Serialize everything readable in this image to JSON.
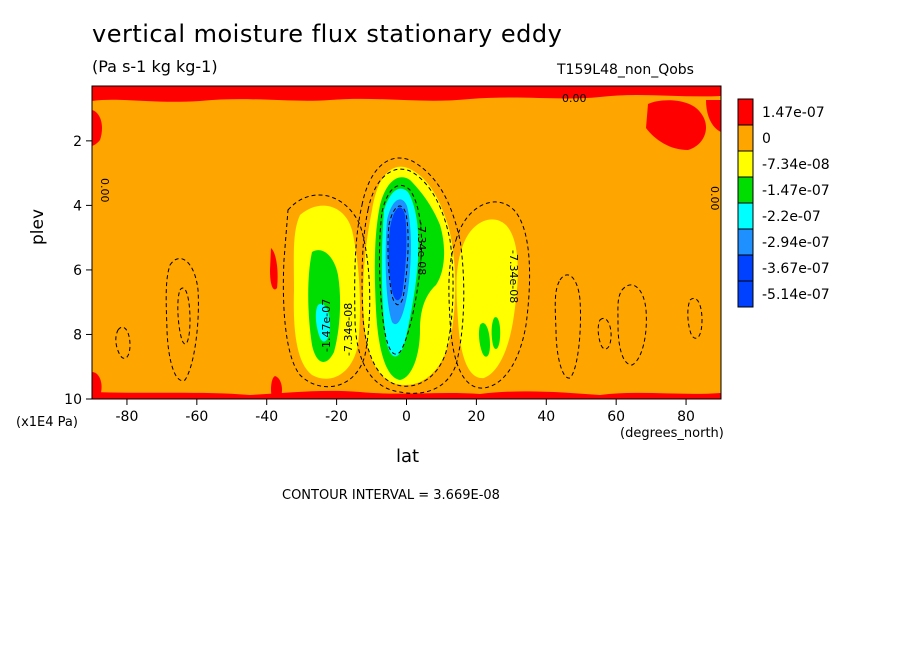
{
  "chart_data": {
    "type": "heatmap",
    "title": "vertical moisture flux stationary eddy",
    "subtitle": "(Pa s-1 kg kg-1)",
    "run_label": "T159L48_non_Qobs",
    "xlabel": "lat",
    "x_unit": "(degrees_north)",
    "ylabel": "plev",
    "y_unit": "(x1E4 Pa)",
    "xlim": [
      -90,
      90
    ],
    "ylim": [
      10,
      0.3
    ],
    "y_inverted": true,
    "x_ticks": [
      -80,
      -60,
      -40,
      -20,
      0,
      20,
      40,
      60,
      80
    ],
    "y_ticks": [
      2,
      4,
      6,
      8,
      10
    ],
    "contour_interval_text": "CONTOUR INTERVAL = 3.669E-08",
    "contour_labels": [
      "0.00",
      "0.00",
      "0.00",
      "-7.34e-08",
      "-7.34e-08",
      "-7.34e-08",
      "-1.47e-07"
    ],
    "legend": {
      "position": "right",
      "levels": [
        {
          "label": "1.47e-07",
          "color": "#ff0000"
        },
        {
          "label": "0",
          "color": "#ffa500"
        },
        {
          "label": "-7.34e-08",
          "color": "#ffff00"
        },
        {
          "label": "-1.47e-07",
          "color": "#00dd00"
        },
        {
          "label": "-2.2e-07",
          "color": "#00ffff"
        },
        {
          "label": "-2.94e-07",
          "color": "#1e90ff"
        },
        {
          "label": "-3.67e-07",
          "color": "#0040ff"
        },
        {
          "label": "-5.14e-07",
          "color": "#0040ff"
        }
      ]
    },
    "features": [
      {
        "name": "negative-center-equator",
        "lat": -3,
        "plev": 5.8,
        "level": -3.67e-07
      },
      {
        "name": "negative-lobe-south",
        "lat": -25,
        "plev": 6.5,
        "level": -1.47e-07
      },
      {
        "name": "negative-lobe-north",
        "lat": 25,
        "plev": 6.5,
        "level": -7.34e-08
      }
    ]
  }
}
